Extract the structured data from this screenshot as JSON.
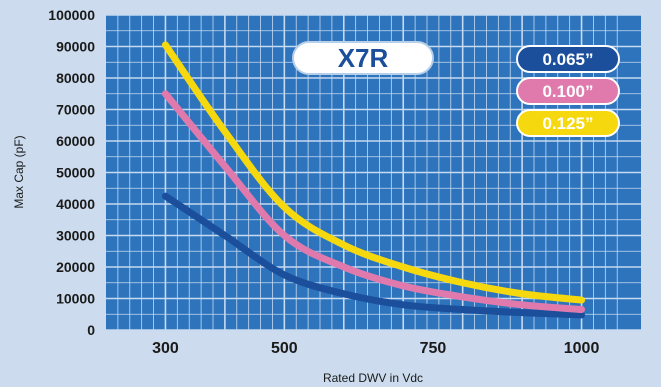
{
  "chart_data": {
    "type": "line",
    "title": "X7R",
    "xlabel": "Rated DWV in Vdc",
    "ylabel": "Max Cap (pF)",
    "xlim": [
      200,
      1100
    ],
    "ylim": [
      0,
      100000
    ],
    "x_ticks": [
      300,
      500,
      750,
      1000
    ],
    "x_tick_labels": [
      "300",
      "500",
      "750",
      "1000"
    ],
    "y_ticks": [
      0,
      10000,
      20000,
      30000,
      40000,
      50000,
      60000,
      70000,
      80000,
      90000,
      100000
    ],
    "y_tick_labels": [
      "0",
      "10000",
      "20000",
      "30000",
      "40000",
      "50000",
      "60000",
      "70000",
      "80000",
      "90000",
      "100000"
    ],
    "grid": true,
    "legend_position": "top-right",
    "series": [
      {
        "name": "0.065”",
        "color": "#1b4f9c",
        "x": [
          300,
          400,
          500,
          600,
          700,
          800,
          900,
          1000
        ],
        "y": [
          42500,
          30000,
          17500,
          11500,
          8000,
          6500,
          5500,
          4800
        ]
      },
      {
        "name": "0.100”",
        "color": "#e07aad",
        "x": [
          300,
          400,
          500,
          600,
          700,
          800,
          900,
          1000
        ],
        "y": [
          75000,
          52000,
          30000,
          20000,
          14000,
          10500,
          8000,
          6500
        ]
      },
      {
        "name": "0.125”",
        "color": "#f6d80e",
        "x": [
          300,
          400,
          500,
          600,
          700,
          800,
          900,
          1000
        ],
        "y": [
          90500,
          63000,
          39000,
          27000,
          20000,
          15000,
          11500,
          9500
        ]
      }
    ]
  },
  "colors": {
    "background": "#ccdcee",
    "plot_area": "#2e74bd",
    "grid_line": "#c6daf0",
    "title_text": "#1b4f9c"
  }
}
